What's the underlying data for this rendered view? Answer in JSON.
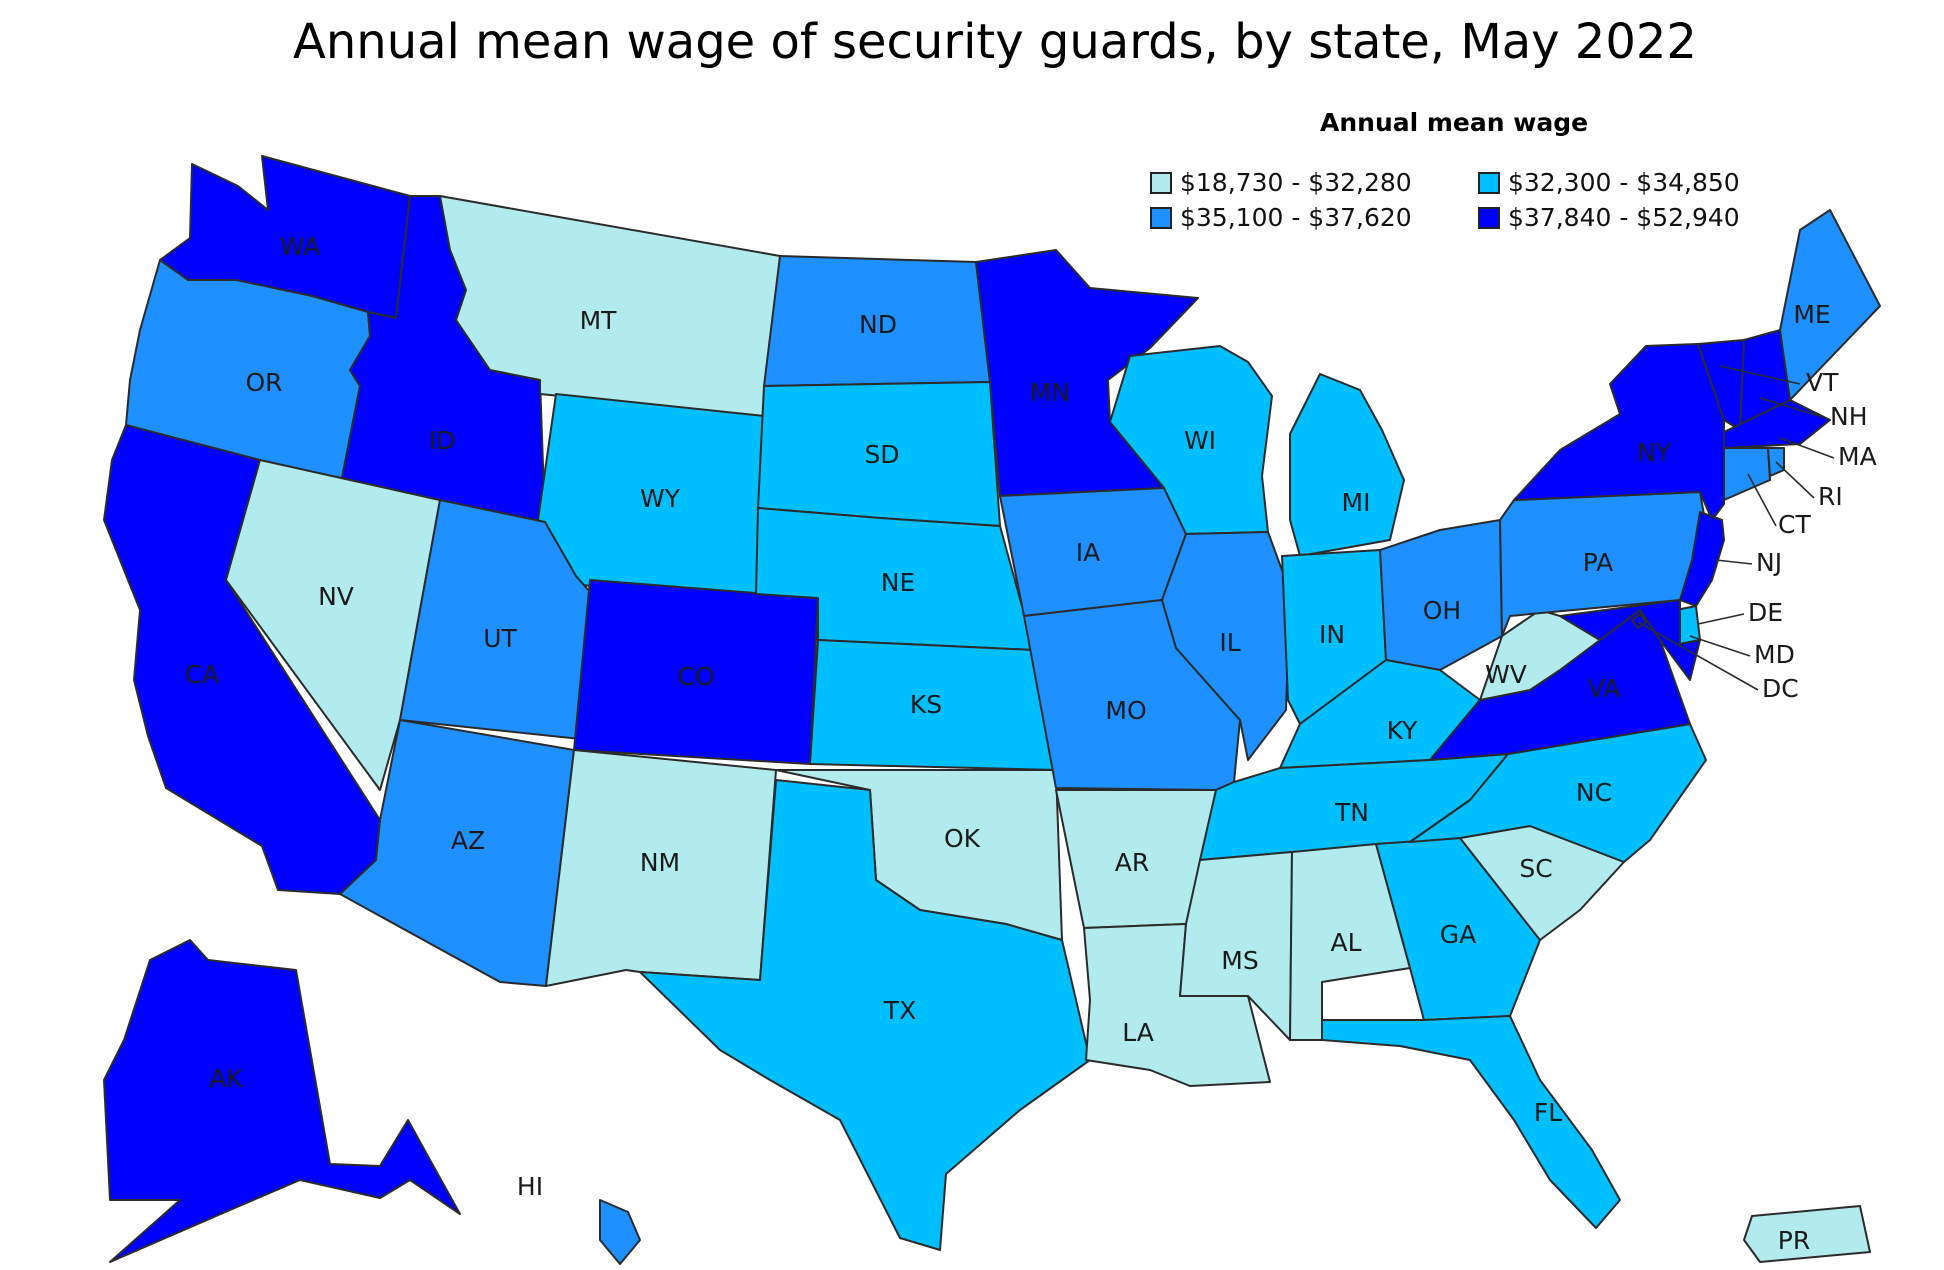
{
  "title": "Annual mean wage of security guards, by state, May 2022",
  "legend": {
    "title": "Annual mean wage",
    "bins": [
      {
        "label": "$18,730 - $32,280",
        "color": "#b2ebee"
      },
      {
        "label": "$32,300 - $34,850",
        "color": "#00bfff"
      },
      {
        "label": "$35,100 - $37,620",
        "color": "#1e90ff"
      },
      {
        "label": "$37,840 - $52,940",
        "color": "#0000ff"
      }
    ]
  },
  "states": {
    "WA": 3,
    "OR": 2,
    "CA": 3,
    "NV": 0,
    "ID": 3,
    "MT": 0,
    "WY": 1,
    "UT": 2,
    "CO": 3,
    "AZ": 2,
    "NM": 0,
    "ND": 2,
    "SD": 1,
    "NE": 1,
    "KS": 1,
    "OK": 0,
    "TX": 1,
    "MN": 3,
    "IA": 2,
    "MO": 2,
    "AR": 0,
    "LA": 0,
    "WI": 1,
    "IL": 2,
    "MI": 1,
    "IN": 1,
    "OH": 2,
    "KY": 1,
    "TN": 1,
    "MS": 0,
    "AL": 0,
    "GA": 1,
    "FL": 1,
    "SC": 0,
    "NC": 1,
    "VA": 3,
    "WV": 0,
    "PA": 2,
    "NY": 3,
    "ME": 2,
    "VT": 3,
    "NH": 3,
    "MA": 3,
    "RI": 2,
    "CT": 2,
    "NJ": 3,
    "DE": 1,
    "MD": 3,
    "DC": 3,
    "AK": 3,
    "HI": 2,
    "PR": 0
  }
}
